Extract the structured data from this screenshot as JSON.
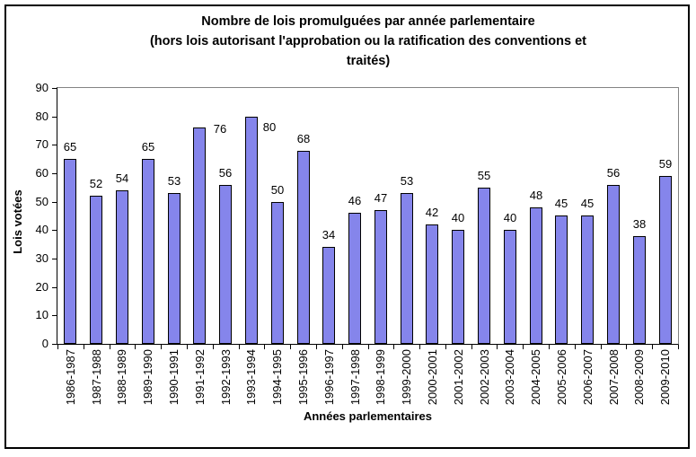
{
  "chart_data": {
    "type": "bar",
    "title": "Nombre de lois promulguées par année parlementaire (hors lois autorisant l'approbation ou la ratification des conventions et traités)",
    "title_lines": [
      "Nombre de lois promulguées par année parlementaire",
      "(hors lois autorisant l'approbation ou la ratification des conventions et",
      "traités)"
    ],
    "xlabel": "Années parlementaires",
    "ylabel": "Lois votées",
    "categories": [
      "1986-1987",
      "1987-1988",
      "1988-1989",
      "1989-1990",
      "1990-1991",
      "1991-1992",
      "1992-1993",
      "1993-1994",
      "1994-1995",
      "1995-1996",
      "1996-1997",
      "1997-1998",
      "1998-1999",
      "1999-2000",
      "2000-2001",
      "2001-2002",
      "2002-2003",
      "2003-2004",
      "2004-2005",
      "2005-2006",
      "2006-2007",
      "2007-2008",
      "2008-2009",
      "2009-2010"
    ],
    "values": [
      65,
      52,
      54,
      65,
      53,
      76,
      56,
      80,
      50,
      68,
      34,
      46,
      47,
      53,
      42,
      40,
      55,
      40,
      48,
      45,
      45,
      56,
      38,
      59
    ],
    "ylim": [
      0,
      90
    ],
    "yticks": [
      0,
      10,
      20,
      30,
      40,
      50,
      60,
      70,
      80,
      90
    ],
    "grid": false,
    "legend": "none",
    "data_labels": true,
    "colors": {
      "bar_fill": "#8585EB",
      "bar_border": "#000000",
      "plot_border": "#848484",
      "axis": "#000000",
      "text": "#000000",
      "background": "#FFFFFF"
    }
  }
}
